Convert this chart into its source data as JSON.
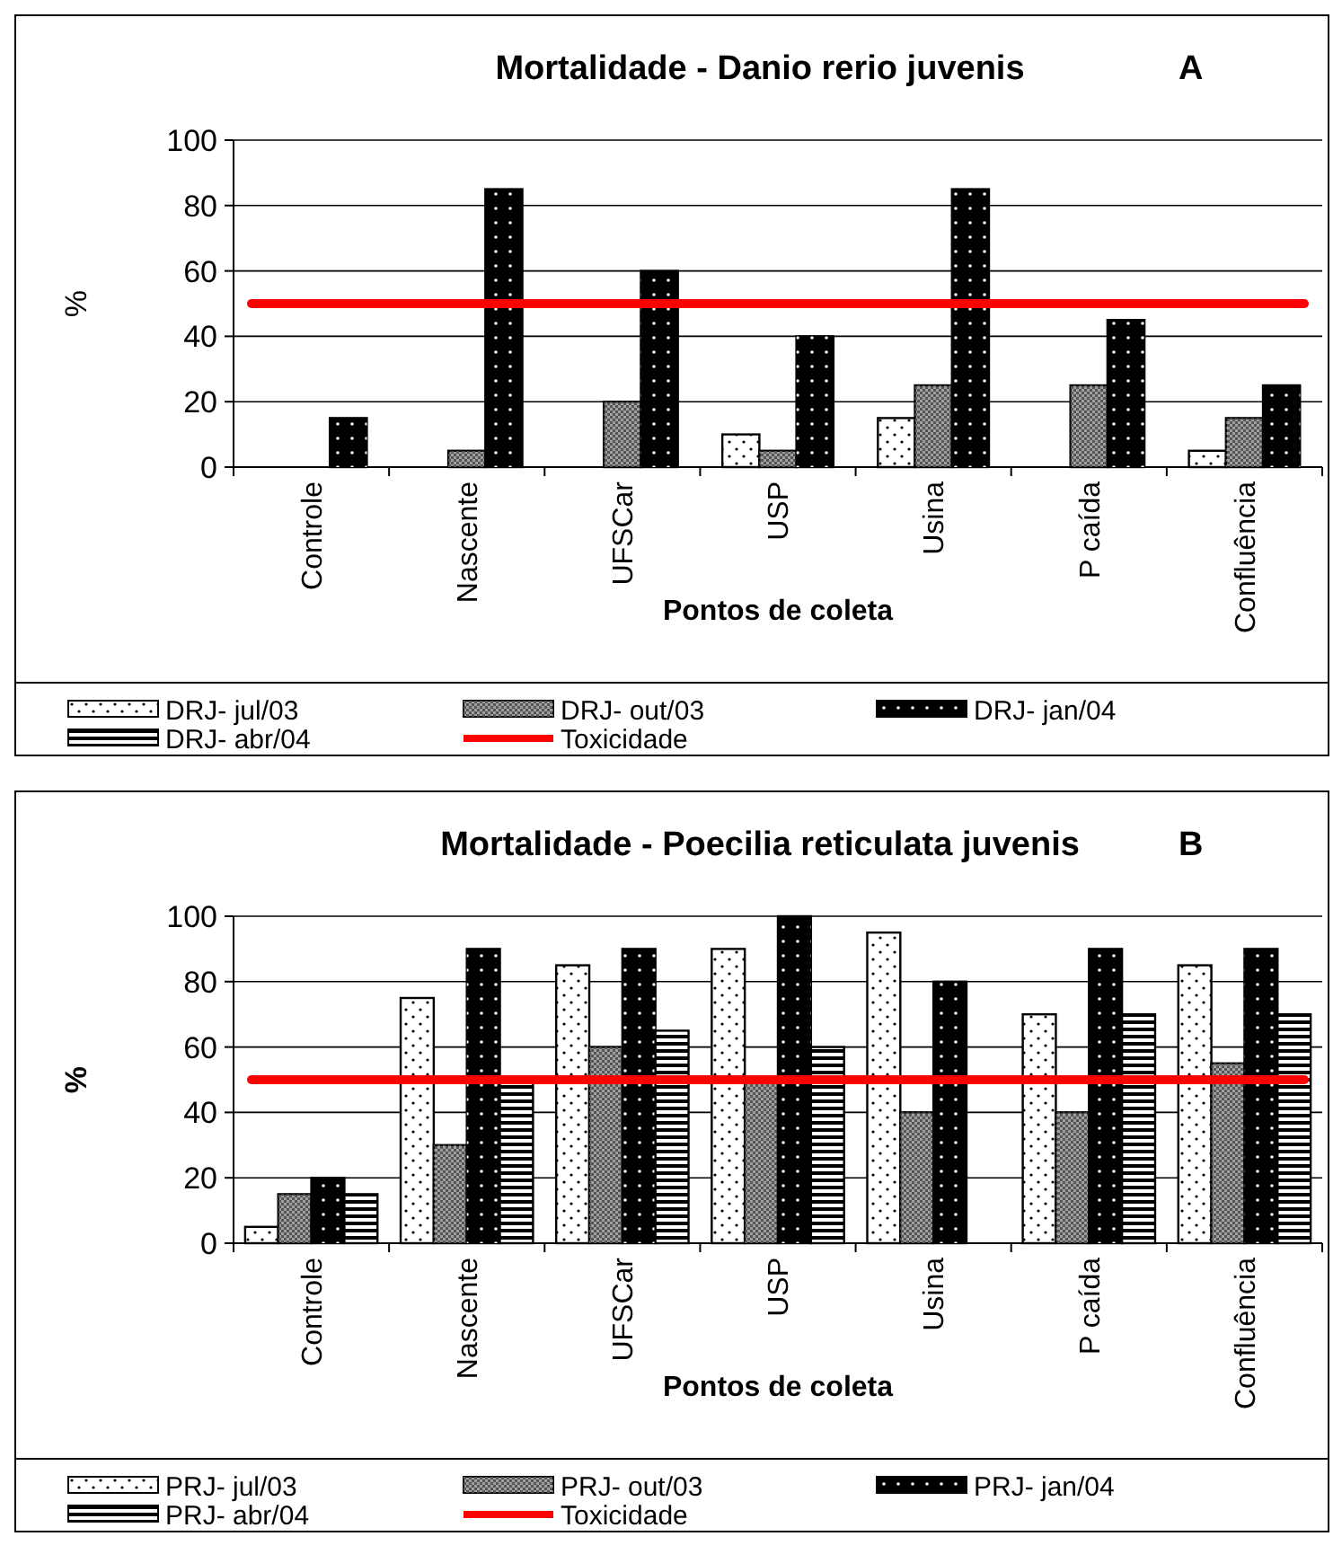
{
  "chart_data": [
    {
      "type": "bar",
      "title": "Mortalidade - Danio rerio juvenis",
      "annotations": [
        "A"
      ],
      "xlabel": "Pontos de coleta",
      "ylabel": "%",
      "categories": [
        "Controle",
        "Nascente",
        "UFSCar",
        "USP",
        "Usina",
        "P caída",
        "Confluência"
      ],
      "ylim": [
        0,
        100
      ],
      "yticks": [
        0,
        20,
        40,
        60,
        80,
        100
      ],
      "grid": "y",
      "legend": "bottom",
      "series": [
        {
          "name": "DRJ- jul/03",
          "color": "#ffffff",
          "values": [
            0,
            0,
            0,
            10,
            15,
            0,
            5
          ]
        },
        {
          "name": "DRJ- out/03",
          "color": "#a0a0a0",
          "values": [
            0,
            5,
            20,
            5,
            25,
            25,
            15
          ]
        },
        {
          "name": "DRJ- jan/04",
          "color": "#000000",
          "values": [
            15,
            85,
            60,
            40,
            85,
            45,
            25
          ]
        },
        {
          "name": "DRJ- abr/04",
          "color": "#ffffff",
          "values": [
            null,
            null,
            null,
            null,
            null,
            null,
            null
          ]
        }
      ],
      "ref_lines": [
        {
          "axis": "y",
          "value": 50,
          "label": "Toxicidade",
          "color": "#ff0000"
        }
      ]
    },
    {
      "type": "bar",
      "title": "Mortalidade - Poecilia reticulata juvenis",
      "annotations": [
        "B"
      ],
      "xlabel": "Pontos de coleta",
      "ylabel": "%",
      "categories": [
        "Controle",
        "Nascente",
        "UFSCar",
        "USP",
        "Usina",
        "P caída",
        "Confluência"
      ],
      "ylim": [
        0,
        100
      ],
      "yticks": [
        0,
        20,
        40,
        60,
        80,
        100
      ],
      "grid": "y",
      "legend": "bottom",
      "series": [
        {
          "name": "PRJ- jul/03",
          "color": "#ffffff",
          "values": [
            5,
            75,
            85,
            90,
            95,
            70,
            85
          ]
        },
        {
          "name": "PRJ- out/03",
          "color": "#a0a0a0",
          "values": [
            15,
            30,
            60,
            50,
            40,
            40,
            55
          ]
        },
        {
          "name": "PRJ- jan/04",
          "color": "#000000",
          "values": [
            20,
            90,
            90,
            100,
            80,
            90,
            90
          ]
        },
        {
          "name": "PRJ- abr/04",
          "color": "#ffffff",
          "values": [
            15,
            50,
            65,
            60,
            0,
            70,
            70
          ]
        }
      ],
      "ref_lines": [
        {
          "axis": "y",
          "value": 50,
          "label": "Toxicidade",
          "color": "#ff0000"
        }
      ]
    }
  ]
}
